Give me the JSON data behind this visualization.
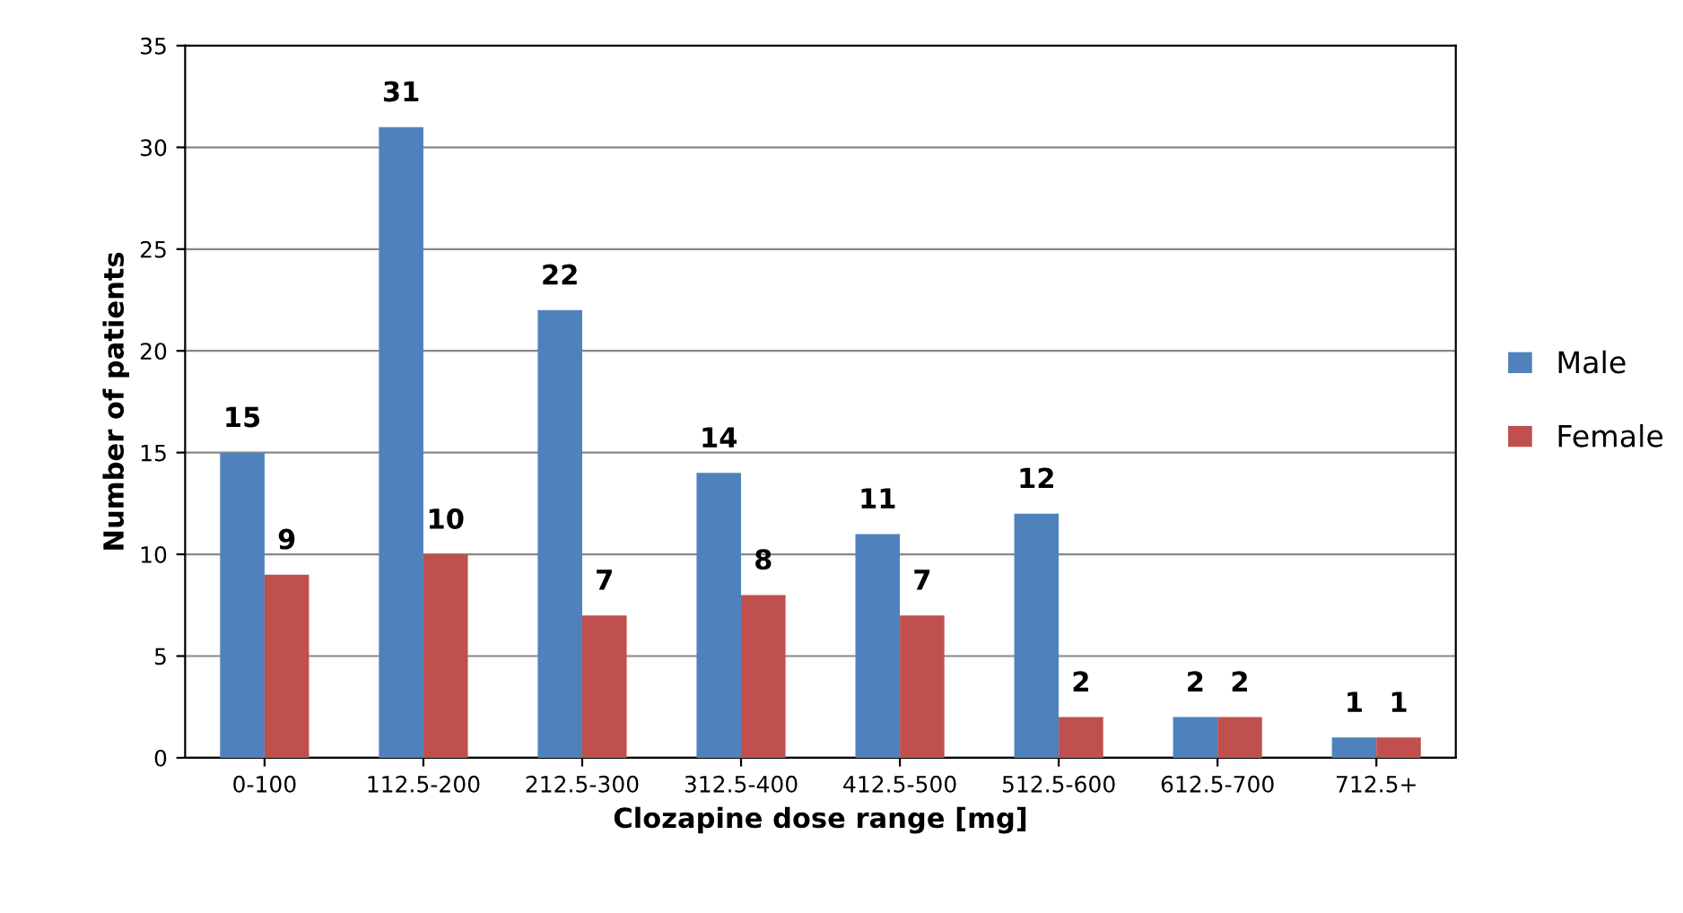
{
  "chart_data": {
    "type": "bar",
    "xlabel": "Clozapine dose range [mg]",
    "ylabel": "Number of patients",
    "categories": [
      "0-100",
      "112.5-200",
      "212.5-300",
      "312.5-400",
      "412.5-500",
      "512.5-600",
      "612.5-700",
      "712.5+"
    ],
    "series": [
      {
        "name": "Male",
        "color": "#4f81bd",
        "values": [
          15,
          31,
          22,
          14,
          11,
          12,
          2,
          1
        ]
      },
      {
        "name": "Female",
        "color": "#c0504d",
        "values": [
          9,
          10,
          7,
          8,
          7,
          2,
          2,
          1
        ]
      }
    ],
    "ylim": [
      0,
      35
    ],
    "yticks": [
      0,
      5,
      10,
      15,
      20,
      25,
      30,
      35
    ],
    "grid": "y",
    "legend": "right",
    "data_labels": true
  }
}
